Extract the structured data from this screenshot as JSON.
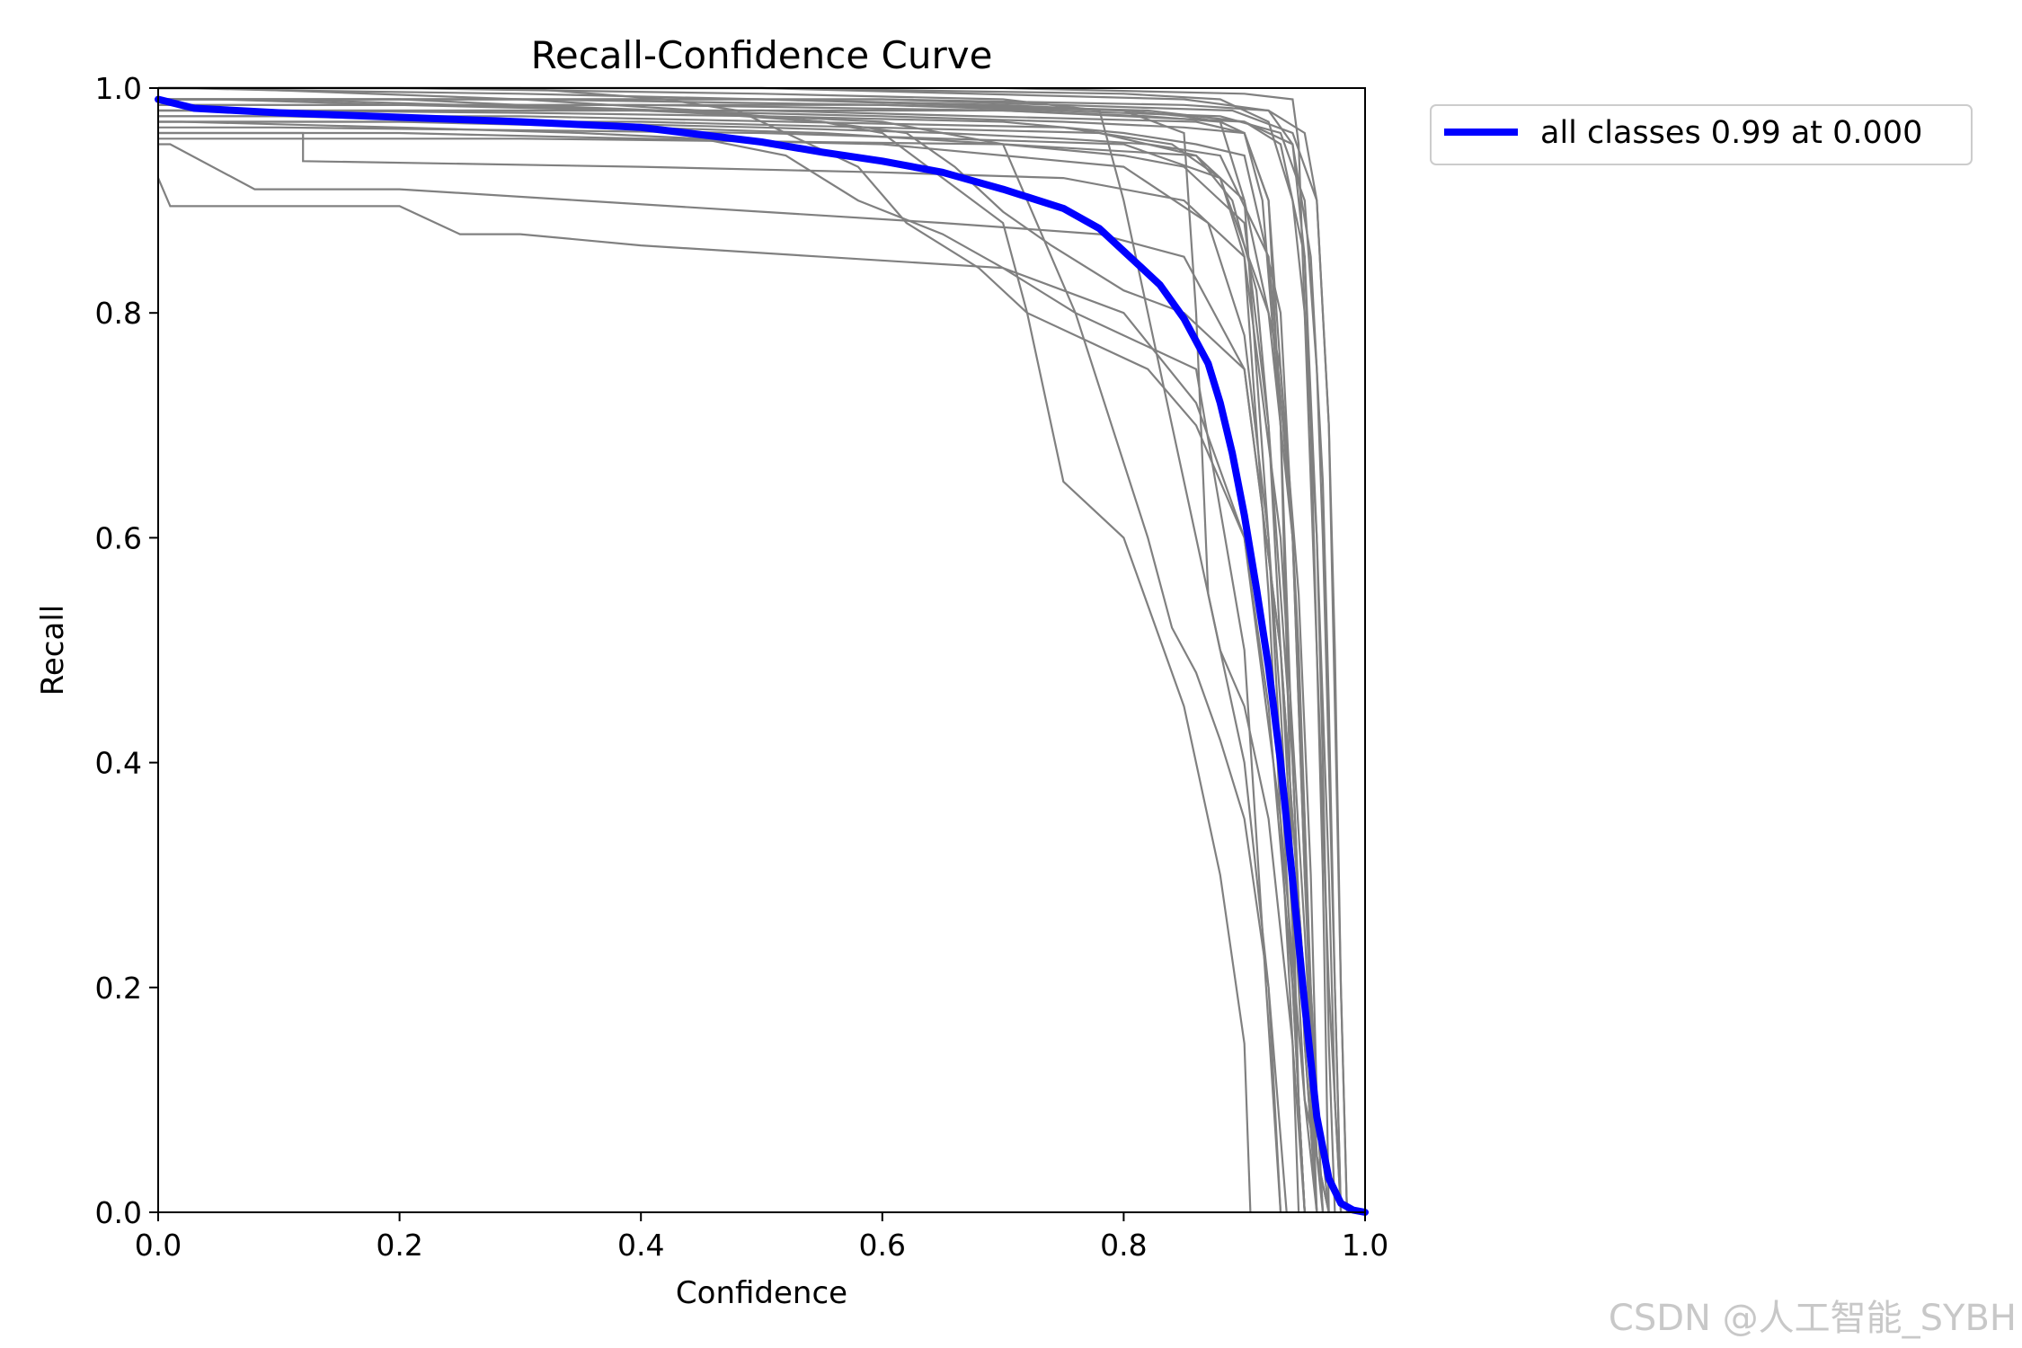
{
  "chart_data": {
    "type": "line",
    "title": "Recall-Confidence Curve",
    "xlabel": "Confidence",
    "ylabel": "Recall",
    "xlim": [
      0,
      1
    ],
    "ylim": [
      0,
      1
    ],
    "xticks": [
      "0.0",
      "0.2",
      "0.4",
      "0.6",
      "0.8",
      "1.0"
    ],
    "yticks": [
      "0.0",
      "0.2",
      "0.4",
      "0.6",
      "0.8",
      "1.0"
    ],
    "grid": false,
    "legend_position": "outside-top-right",
    "colors": {
      "class_curves": "#808080",
      "all_classes": "#0000ff",
      "frame": "#000000"
    },
    "series": [
      {
        "name": "all classes 0.99 at 0.000",
        "color": "#0000ff",
        "x": [
          0,
          0.03,
          0.1,
          0.2,
          0.3,
          0.4,
          0.5,
          0.55,
          0.6,
          0.65,
          0.7,
          0.75,
          0.78,
          0.8,
          0.83,
          0.85,
          0.87,
          0.88,
          0.89,
          0.9,
          0.91,
          0.92,
          0.93,
          0.94,
          0.95,
          0.96,
          0.97,
          0.98,
          0.99,
          1.0
        ],
        "y": [
          0.99,
          0.982,
          0.978,
          0.974,
          0.97,
          0.965,
          0.952,
          0.943,
          0.935,
          0.925,
          0.91,
          0.893,
          0.875,
          0.855,
          0.825,
          0.795,
          0.755,
          0.72,
          0.675,
          0.62,
          0.555,
          0.485,
          0.4,
          0.295,
          0.185,
          0.085,
          0.03,
          0.008,
          0.002,
          0.0
        ]
      }
    ],
    "class_curves": [
      {
        "x": [
          0,
          0.02,
          0.1,
          0.3,
          0.5,
          0.7,
          0.8,
          0.85,
          0.88,
          0.9,
          0.915,
          0.93,
          0.94,
          0.95,
          0.96
        ],
        "y": [
          1,
          1,
          0.998,
          0.995,
          0.99,
          0.985,
          0.98,
          0.975,
          0.97,
          0.96,
          0.9,
          0.7,
          0.4,
          0.15,
          0
        ]
      },
      {
        "x": [
          0,
          0.05,
          0.2,
          0.4,
          0.6,
          0.75,
          0.85,
          0.9,
          0.92,
          0.94,
          0.95,
          0.96,
          0.97
        ],
        "y": [
          0.99,
          0.99,
          0.985,
          0.98,
          0.975,
          0.97,
          0.965,
          0.96,
          0.9,
          0.6,
          0.3,
          0.1,
          0
        ]
      },
      {
        "x": [
          0,
          0.1,
          0.3,
          0.5,
          0.7,
          0.8,
          0.86,
          0.9,
          0.93,
          0.945,
          0.955,
          0.965
        ],
        "y": [
          0.98,
          0.98,
          0.978,
          0.975,
          0.97,
          0.96,
          0.95,
          0.94,
          0.8,
          0.5,
          0.2,
          0
        ]
      },
      {
        "x": [
          0,
          0.1,
          0.3,
          0.5,
          0.65,
          0.75,
          0.82,
          0.88,
          0.92,
          0.94,
          0.95,
          0.96,
          0.965
        ],
        "y": [
          0.975,
          0.975,
          0.97,
          0.965,
          0.96,
          0.955,
          0.95,
          0.94,
          0.85,
          0.6,
          0.3,
          0.05,
          0
        ]
      },
      {
        "x": [
          0,
          0.2,
          0.4,
          0.55,
          0.7,
          0.8,
          0.85,
          0.9,
          0.92,
          0.94,
          0.95,
          0.96
        ],
        "y": [
          0.97,
          0.97,
          0.965,
          0.96,
          0.95,
          0.94,
          0.93,
          0.88,
          0.7,
          0.4,
          0.15,
          0
        ]
      },
      {
        "x": [
          0,
          0.01,
          0.12,
          0.12,
          0.4,
          0.6,
          0.75,
          0.85,
          0.9,
          0.93,
          0.95,
          0.96,
          0.97
        ],
        "y": [
          0.96,
          0.96,
          0.96,
          0.935,
          0.93,
          0.925,
          0.92,
          0.9,
          0.85,
          0.6,
          0.25,
          0.05,
          0
        ]
      },
      {
        "x": [
          0,
          0.01,
          0.08,
          0.2,
          0.35,
          0.5,
          0.65,
          0.78,
          0.85,
          0.9,
          0.93,
          0.95,
          0.96,
          0.97
        ],
        "y": [
          0.95,
          0.95,
          0.91,
          0.91,
          0.9,
          0.89,
          0.88,
          0.87,
          0.85,
          0.75,
          0.5,
          0.2,
          0.05,
          0
        ]
      },
      {
        "x": [
          0,
          0.01,
          0.2,
          0.25,
          0.3,
          0.4,
          0.55,
          0.7,
          0.8,
          0.86,
          0.9,
          0.93,
          0.95,
          0.97
        ],
        "y": [
          0.92,
          0.895,
          0.895,
          0.87,
          0.87,
          0.86,
          0.85,
          0.84,
          0.8,
          0.72,
          0.6,
          0.35,
          0.1,
          0
        ]
      },
      {
        "x": [
          0,
          0.2,
          0.3,
          0.42,
          0.55,
          0.62,
          0.66,
          0.7,
          0.74,
          0.8,
          0.85,
          0.9,
          0.93,
          0.95,
          0.96
        ],
        "y": [
          0.99,
          0.99,
          0.985,
          0.98,
          0.97,
          0.96,
          0.93,
          0.89,
          0.86,
          0.82,
          0.8,
          0.75,
          0.5,
          0.2,
          0
        ]
      },
      {
        "x": [
          0,
          0.3,
          0.42,
          0.48,
          0.52,
          0.58,
          0.62,
          0.68,
          0.72,
          0.78,
          0.82,
          0.86,
          0.9,
          0.92,
          0.94,
          0.95
        ],
        "y": [
          1,
          1,
          0.99,
          0.98,
          0.96,
          0.93,
          0.88,
          0.84,
          0.8,
          0.77,
          0.75,
          0.7,
          0.6,
          0.45,
          0.2,
          0
        ]
      },
      {
        "x": [
          0,
          0.02,
          0.2,
          0.35,
          0.45,
          0.52,
          0.58,
          0.65,
          0.7,
          0.76,
          0.8,
          0.86,
          0.9,
          0.93
        ],
        "y": [
          0.97,
          0.97,
          0.965,
          0.96,
          0.955,
          0.94,
          0.9,
          0.87,
          0.84,
          0.8,
          0.78,
          0.75,
          0.5,
          0
        ]
      },
      {
        "x": [
          0,
          0.05,
          0.3,
          0.45,
          0.55,
          0.6,
          0.65,
          0.7,
          0.72,
          0.75,
          0.8,
          0.85,
          0.88,
          0.9,
          0.905
        ],
        "y": [
          1,
          1,
          0.99,
          0.98,
          0.97,
          0.96,
          0.92,
          0.88,
          0.8,
          0.65,
          0.6,
          0.45,
          0.3,
          0.15,
          0
        ]
      },
      {
        "x": [
          0,
          0.1,
          0.4,
          0.6,
          0.7,
          0.72,
          0.76,
          0.79,
          0.82,
          0.84,
          0.86,
          0.88,
          0.9,
          0.92,
          0.93
        ],
        "y": [
          0.99,
          0.99,
          0.98,
          0.97,
          0.95,
          0.9,
          0.8,
          0.7,
          0.6,
          0.52,
          0.48,
          0.42,
          0.35,
          0.2,
          0
        ]
      },
      {
        "x": [
          0,
          0.2,
          0.5,
          0.7,
          0.78,
          0.8,
          0.82,
          0.84,
          0.86,
          0.88,
          0.9,
          0.92,
          0.935
        ],
        "y": [
          1,
          1,
          0.995,
          0.99,
          0.98,
          0.9,
          0.8,
          0.7,
          0.6,
          0.5,
          0.4,
          0.2,
          0
        ]
      },
      {
        "x": [
          0,
          0.3,
          0.6,
          0.8,
          0.85,
          0.86,
          0.87,
          0.88,
          0.9,
          0.92,
          0.94,
          0.95
        ],
        "y": [
          0.99,
          0.99,
          0.985,
          0.98,
          0.96,
          0.8,
          0.55,
          0.5,
          0.45,
          0.35,
          0.15,
          0
        ]
      },
      {
        "x": [
          0,
          0.4,
          0.7,
          0.82,
          0.88,
          0.9,
          0.91,
          0.92,
          0.93,
          0.94,
          0.945,
          0.95
        ],
        "y": [
          0.985,
          0.985,
          0.98,
          0.975,
          0.97,
          0.9,
          0.75,
          0.6,
          0.45,
          0.25,
          0.1,
          0
        ]
      },
      {
        "x": [
          0,
          0.5,
          0.8,
          0.88,
          0.92,
          0.94,
          0.95,
          0.96,
          0.965,
          0.97,
          0.975
        ],
        "y": [
          1,
          1,
          0.995,
          0.99,
          0.97,
          0.9,
          0.8,
          0.6,
          0.4,
          0.15,
          0
        ]
      },
      {
        "x": [
          0,
          0.6,
          0.85,
          0.92,
          0.94,
          0.95,
          0.955,
          0.96,
          0.965,
          0.97
        ],
        "y": [
          0.99,
          0.99,
          0.985,
          0.98,
          0.95,
          0.85,
          0.7,
          0.5,
          0.3,
          0
        ]
      },
      {
        "x": [
          0,
          0.7,
          0.9,
          0.94,
          0.945,
          0.95,
          0.955,
          0.96,
          0.97,
          0.98
        ],
        "y": [
          1,
          1,
          0.995,
          0.99,
          0.95,
          0.8,
          0.65,
          0.5,
          0.2,
          0
        ]
      },
      {
        "x": [
          0,
          0.5,
          0.86,
          0.9,
          0.92,
          0.93,
          0.935,
          0.94,
          0.945,
          0.95
        ],
        "y": [
          0.98,
          0.98,
          0.97,
          0.96,
          0.9,
          0.7,
          0.5,
          0.3,
          0.1,
          0
        ]
      },
      {
        "x": [
          0,
          0.3,
          0.75,
          0.84,
          0.88,
          0.9,
          0.91,
          0.92,
          0.93,
          0.94,
          0.945
        ],
        "y": [
          0.975,
          0.975,
          0.965,
          0.95,
          0.92,
          0.85,
          0.7,
          0.55,
          0.35,
          0.15,
          0
        ]
      },
      {
        "x": [
          0,
          0.4,
          0.78,
          0.86,
          0.89,
          0.91,
          0.92,
          0.93,
          0.94,
          0.95,
          0.96
        ],
        "y": [
          0.97,
          0.97,
          0.96,
          0.94,
          0.9,
          0.82,
          0.7,
          0.5,
          0.3,
          0.1,
          0
        ]
      },
      {
        "x": [
          0,
          0.2,
          0.6,
          0.8,
          0.87,
          0.9,
          0.92,
          0.93,
          0.94,
          0.95
        ],
        "y": [
          0.96,
          0.96,
          0.95,
          0.93,
          0.88,
          0.78,
          0.6,
          0.4,
          0.2,
          0
        ]
      },
      {
        "x": [
          0,
          0.5,
          0.82,
          0.9,
          0.93,
          0.95,
          0.96,
          0.965,
          0.97,
          0.975,
          0.98
        ],
        "y": [
          0.99,
          0.99,
          0.98,
          0.97,
          0.95,
          0.85,
          0.6,
          0.45,
          0.3,
          0.1,
          0
        ]
      },
      {
        "x": [
          0,
          0.6,
          0.88,
          0.93,
          0.95,
          0.96,
          0.965,
          0.97,
          0.975,
          0.98
        ],
        "y": [
          0.985,
          0.985,
          0.975,
          0.96,
          0.9,
          0.75,
          0.6,
          0.4,
          0.2,
          0
        ]
      },
      {
        "x": [
          0,
          0.7,
          0.9,
          0.94,
          0.955,
          0.965,
          0.97,
          0.975,
          0.98
        ],
        "y": [
          0.98,
          0.98,
          0.97,
          0.95,
          0.85,
          0.65,
          0.45,
          0.2,
          0
        ]
      },
      {
        "x": [
          0,
          0.1,
          0.5,
          0.8,
          0.88,
          0.92,
          0.94,
          0.95,
          0.955,
          0.96
        ],
        "y": [
          0.965,
          0.965,
          0.96,
          0.95,
          0.92,
          0.8,
          0.6,
          0.35,
          0.15,
          0
        ]
      },
      {
        "x": [
          0,
          0.3,
          0.7,
          0.86,
          0.9,
          0.93,
          0.945,
          0.955,
          0.96,
          0.965
        ],
        "y": [
          0.955,
          0.955,
          0.95,
          0.94,
          0.9,
          0.75,
          0.55,
          0.3,
          0.1,
          0
        ]
      },
      {
        "x": [
          0,
          0.5,
          0.85,
          0.92,
          0.95,
          0.96,
          0.97,
          0.975,
          0.98,
          0.985
        ],
        "y": [
          1,
          1,
          0.99,
          0.98,
          0.96,
          0.9,
          0.7,
          0.5,
          0.2,
          0
        ]
      },
      {
        "x": [
          0,
          0.6,
          0.89,
          0.94,
          0.96,
          0.97,
          0.975,
          0.98,
          0.985
        ],
        "y": [
          0.99,
          0.99,
          0.98,
          0.96,
          0.9,
          0.7,
          0.45,
          0.2,
          0
        ]
      }
    ],
    "watermark": "CSDN @人工智能_SYBH"
  }
}
